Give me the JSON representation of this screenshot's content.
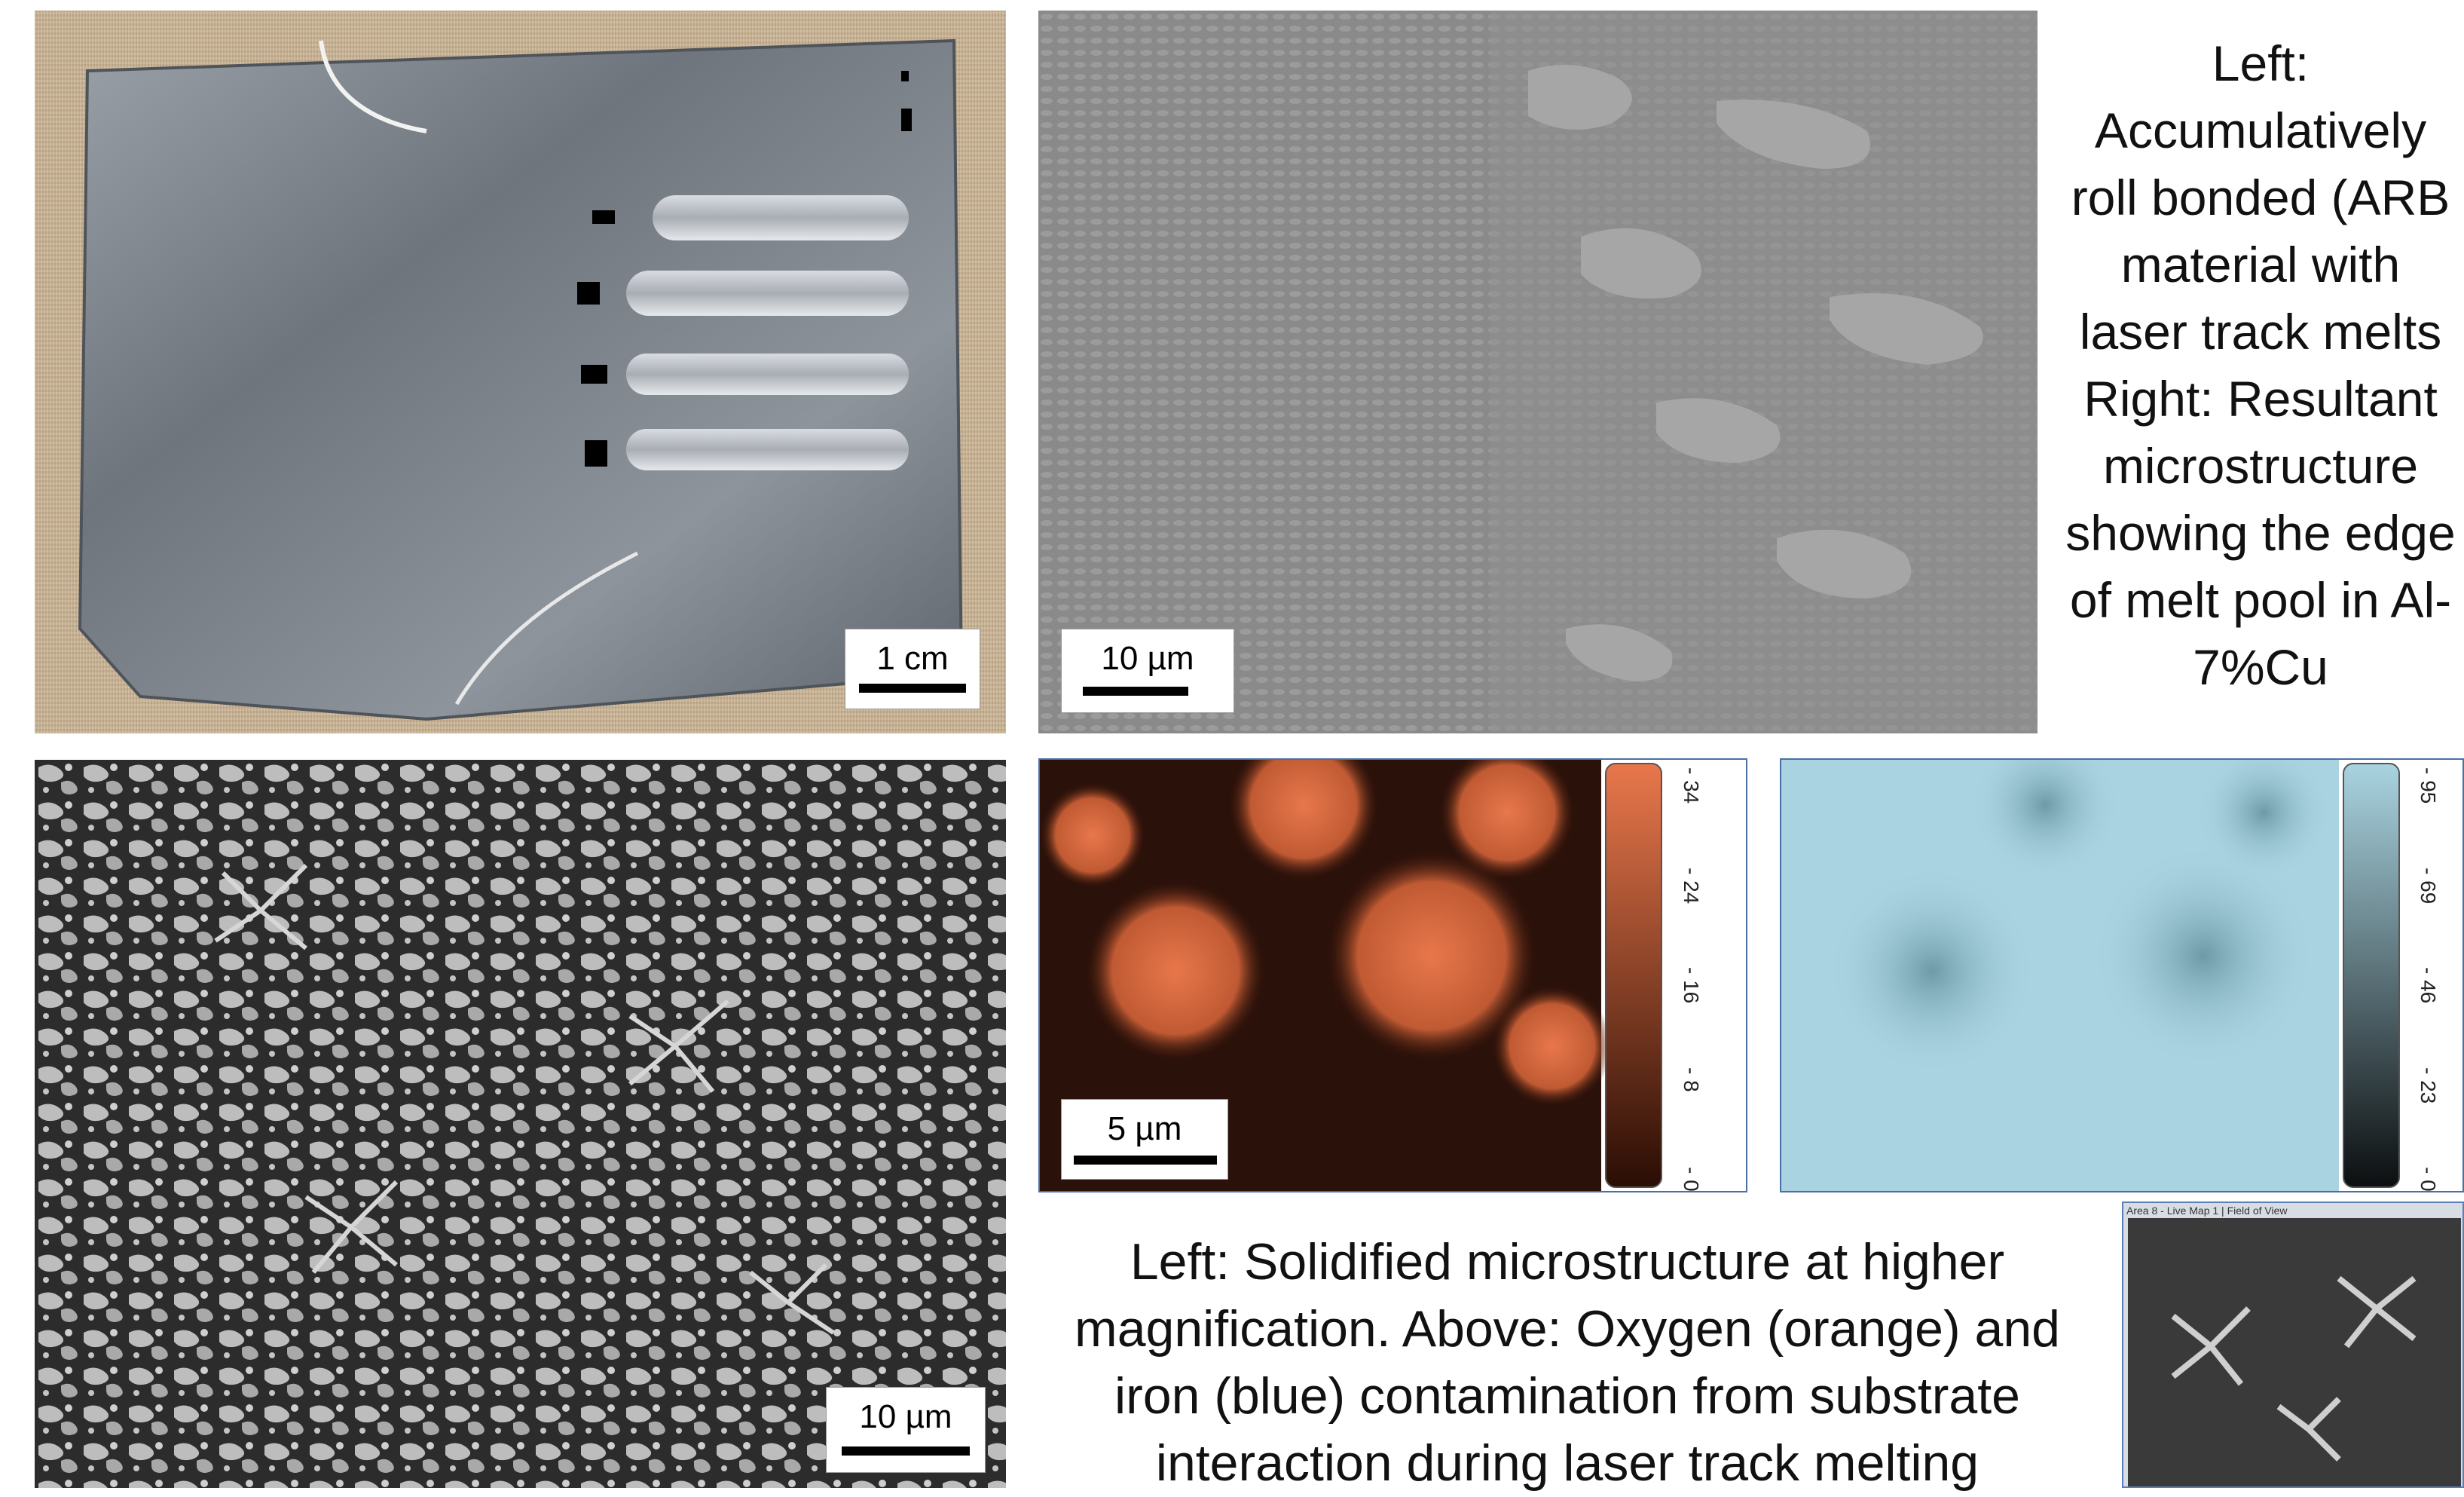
{
  "panels": {
    "photo": {
      "scale_label": "1 cm"
    },
    "sem_top": {
      "scale_label": "10 µm"
    },
    "sem_bottom": {
      "scale_label": "10 µm"
    },
    "map_oxygen": {
      "scale_label": "5 µm",
      "color": "#e8774b",
      "colorbar_ticks": [
        "34",
        "24",
        "16",
        "8",
        "0"
      ]
    },
    "map_iron": {
      "color": "#a9d3e0",
      "colorbar_ticks": [
        "95",
        "69",
        "46",
        "23",
        "0"
      ]
    },
    "thumbnail": {
      "title": "Area 8 - Live Map 1 | Field of View"
    }
  },
  "captions": {
    "top_right": [
      "Left:",
      "Accumulatively",
      "roll bonded (ARB",
      "material with",
      "laser track melts",
      "Right: Resultant",
      "microstructure",
      "showing the edge",
      "of melt pool in Al-",
      "7%Cu"
    ],
    "bottom_middle": [
      "Left: Solidified microstructure at higher",
      "magnification. Above: Oxygen (orange) and",
      "iron (blue) contamination from substrate",
      "interaction during laser track melting"
    ]
  },
  "colors": {
    "oxygen": "#e8774b",
    "iron": "#a9d3e0",
    "frame": "#4a6fa5"
  }
}
